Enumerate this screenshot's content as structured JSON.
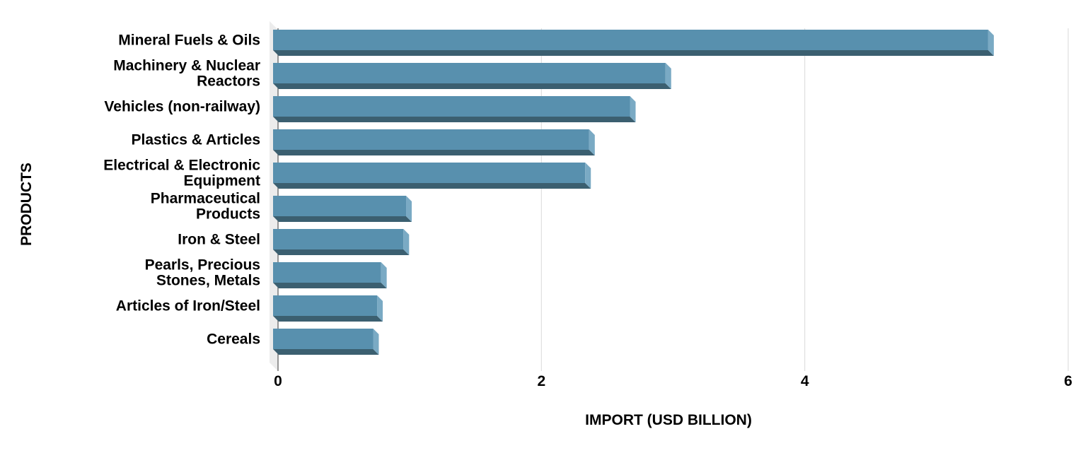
{
  "chart_data": {
    "type": "bar",
    "orientation": "horizontal",
    "style": "3d",
    "categories": [
      [
        "Mineral Fuels & Oils"
      ],
      [
        "Machinery & Nuclear",
        "Reactors"
      ],
      [
        "Vehicles (non-railway)"
      ],
      [
        "Plastics & Articles"
      ],
      [
        "Electrical & Electronic",
        "Equipment"
      ],
      [
        "Pharmaceutical",
        "Products"
      ],
      [
        "Iron & Steel"
      ],
      [
        "Pearls, Precious",
        "Stones, Metals"
      ],
      [
        "Articles of Iron/Steel"
      ],
      [
        "Cereals"
      ]
    ],
    "values": [
      5.43,
      2.98,
      2.71,
      2.4,
      2.37,
      1.01,
      0.99,
      0.82,
      0.79,
      0.76
    ],
    "xlabel": "IMPORT (USD BILLION)",
    "ylabel": "PRODUCTS",
    "xlim": [
      0,
      6
    ],
    "xticks": [
      "0",
      "2",
      "4",
      "6"
    ],
    "grid": true,
    "colors": {
      "front": "#5890ae",
      "bottom": "#3b5f70",
      "side": "#7aaac4",
      "wall": "#ececec",
      "grid": "#d9d9d9"
    }
  }
}
